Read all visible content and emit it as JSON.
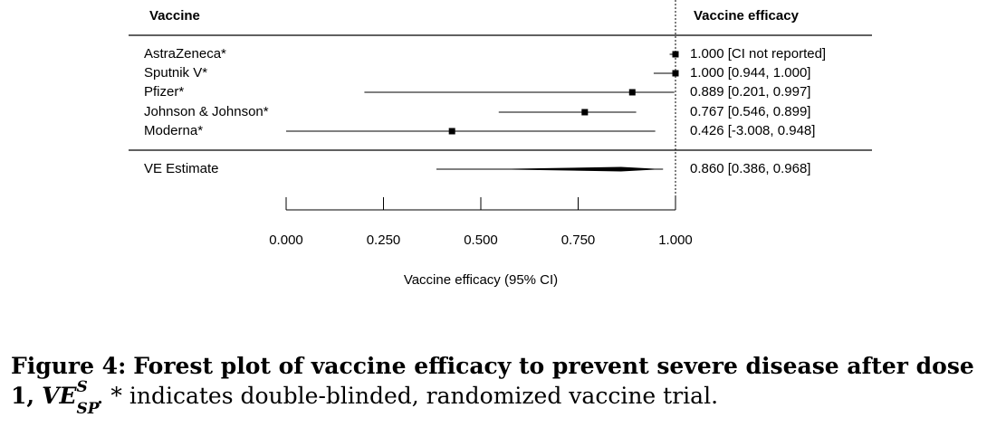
{
  "chart_data": {
    "type": "forest",
    "header_left": "Vaccine",
    "header_right": "Vaccine efficacy",
    "xlabel": "Vaccine efficacy (95% CI)",
    "xlim": [
      0.0,
      1.0
    ],
    "ticks": [
      0.0,
      0.25,
      0.5,
      0.75,
      1.0
    ],
    "tick_labels": [
      "0.000",
      "0.250",
      "0.500",
      "0.750",
      "1.000"
    ],
    "reference_line": 1.0,
    "studies": [
      {
        "name": "AstraZeneca*",
        "estimate": 1.0,
        "lower": 0.985,
        "upper": 1.0,
        "label": "1.000 [CI not reported]"
      },
      {
        "name": "Sputnik V*",
        "estimate": 1.0,
        "lower": 0.944,
        "upper": 1.0,
        "label": "1.000 [0.944, 1.000]"
      },
      {
        "name": "Pfizer*",
        "estimate": 0.889,
        "lower": 0.201,
        "upper": 0.997,
        "label": "0.889 [0.201, 0.997]"
      },
      {
        "name": "Johnson & Johnson*",
        "estimate": 0.767,
        "lower": 0.546,
        "upper": 0.899,
        "label": "0.767 [0.546, 0.899]"
      },
      {
        "name": "Moderna*",
        "estimate": 0.426,
        "lower": -3.008,
        "upper": 0.948,
        "label": "0.426 [-3.008, 0.948]"
      }
    ],
    "summary": {
      "name": "VE Estimate",
      "estimate": 0.86,
      "lower": 0.386,
      "upper": 0.968,
      "label": "0.860 [0.386, 0.968]"
    }
  },
  "caption": {
    "label": "Figure 4:",
    "title": "Forest plot of vaccine efficacy to prevent severe disease after dose 1,",
    "symbol_base": "VE",
    "symbol_sup": "S",
    "symbol_sub": "SP",
    "note": "* indicates double-blinded, randomized vaccine trial."
  }
}
